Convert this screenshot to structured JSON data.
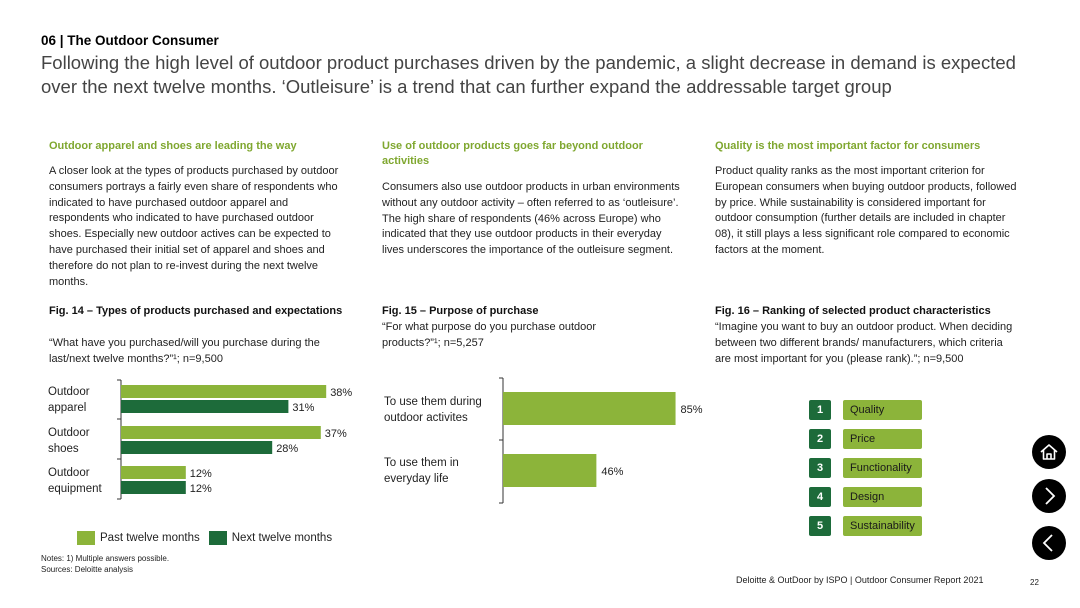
{
  "header": {
    "section": "06 | The Outdoor Consumer",
    "headline": "Following the high level of outdoor product purchases driven by the pandemic, a slight decrease in demand is expected over the next twelve months. ‘Outleisure’ is a trend that can further expand the addressable target group"
  },
  "columns": [
    {
      "heading": "Outdoor apparel and shoes are leading the way",
      "text": "A closer look at the types of products purchased by outdoor consumers portrays a fairly even share of respondents who indicated to have purchased outdoor apparel and respondents who indicated to have purchased outdoor shoes. Especially new outdoor actives can be expected to have purchased their initial set of apparel and shoes and therefore do not plan to re-invest during the next twelve months."
    },
    {
      "heading": "Use of outdoor products goes far beyond outdoor activities",
      "text": "Consumers also use outdoor products in urban environments without any outdoor activity – often referred to as ‘outleisure’. The high share of respondents (46% across Europe) who indicated that they use outdoor products in their everyday lives underscores the importance of the outleisure segment."
    },
    {
      "heading": "Quality is the most important factor for consumers",
      "text": "Product quality ranks as the most important criterion for European consumers when buying outdoor products, followed by price. While sustainability is considered important for outdoor consumption (further details are included in chapter 08), it still plays a less significant role compared to economic factors at the moment."
    }
  ],
  "fig14": {
    "title": "Fig. 14 – Types of products purchased and expectations",
    "subtitle": "“What have you purchased/will you purchase during the last/next twelve months?”¹; n=9,500"
  },
  "fig15": {
    "title": "Fig. 15 – Purpose of purchase",
    "subtitle": "“For what purpose do you purchase outdoor products?”¹; n=5,257"
  },
  "fig16": {
    "title": "Fig. 16 – Ranking of selected product characteristics",
    "subtitle": "“Imagine you want to buy an outdoor product. When deciding between two different brands/ manufacturers, which criteria are most important for you (please rank).”; n=9,500",
    "ranking": [
      {
        "rank": "1",
        "label": "Quality"
      },
      {
        "rank": "2",
        "label": "Price"
      },
      {
        "rank": "3",
        "label": "Functionality"
      },
      {
        "rank": "4",
        "label": "Design"
      },
      {
        "rank": "5",
        "label": "Sustainability"
      }
    ]
  },
  "chart_data": [
    {
      "type": "bar",
      "orientation": "horizontal",
      "categories": [
        "Outdoor apparel",
        "Outdoor shoes",
        "Outdoor equipment"
      ],
      "series": [
        {
          "name": "Past twelve months",
          "values": [
            38,
            37,
            12
          ],
          "color": "#8cb43a"
        },
        {
          "name": "Next twelve months",
          "values": [
            31,
            28,
            12
          ],
          "color": "#1d6b3a"
        }
      ],
      "value_suffix": "%",
      "legend": "bottom",
      "grid": false
    },
    {
      "type": "bar",
      "orientation": "horizontal",
      "categories": [
        "To use them during outdoor activites",
        "To use them in everyday life"
      ],
      "series": [
        {
          "values": [
            85,
            46
          ],
          "color": "#8cb43a"
        }
      ],
      "value_suffix": "%",
      "grid": false
    }
  ],
  "fig14_labels": {
    "c0_line1": "Outdoor",
    "c0_line2": "apparel",
    "c1_line1": "Outdoor",
    "c1_line2": "shoes",
    "c2_line1": "Outdoor",
    "c2_line2": "equipment"
  },
  "fig15_labels": {
    "c0_line1": "To use them during",
    "c0_line2": "outdoor activites",
    "c1_line1": "To use them in",
    "c1_line2": "everyday life"
  },
  "notes": {
    "line1": "Notes: 1) Multiple answers possible.",
    "line2": "Sources: Deloitte analysis"
  },
  "footer": {
    "source": "Deloitte & OutDoor by ISPO | Outdoor Consumer Report 2021",
    "page": "22"
  },
  "nav": {
    "home": "home-icon",
    "next": "chevron-right-icon",
    "prev": "chevron-left-icon"
  },
  "colors": {
    "accent_light": "#8cb43a",
    "accent_dark": "#1d6b3a"
  }
}
